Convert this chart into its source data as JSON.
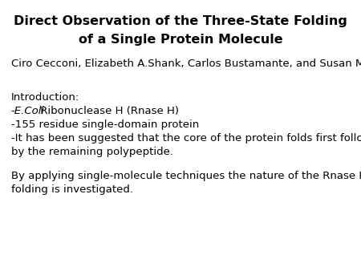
{
  "title_line1": "Direct Observation of the Three-State Folding",
  "title_line2": "of a Single Protein Molecule",
  "authors": "Ciro Cecconi, Elizabeth A.Shank, Carlos Bustamante, and Susan Marqusee",
  "intro_label": "Introduction:",
  "bullet1_italic": "-E.Coli",
  "bullet1_rest": " Ribonuclease H (Rnase H)",
  "bullet2": "-155 residue single-domain protein",
  "bullet3_line1": "-It has been suggested that the core of the protein folds first followed",
  "bullet3_line2": "by the remaining polypeptide.",
  "para2_line1": "By applying single-molecule techniques the nature of the Rnase H",
  "para2_line2": "folding is investigated.",
  "bg_color": "#ffffff",
  "text_color": "#000000",
  "title_fontsize": 11.5,
  "body_fontsize": 9.5
}
